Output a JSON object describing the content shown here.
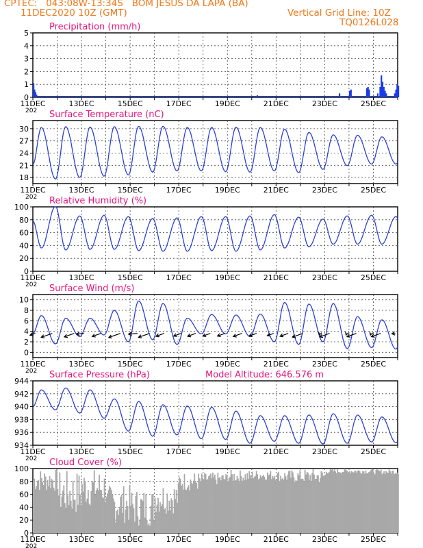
{
  "header": {
    "line1_left": "CPTEC:   043:08W-13:34S   BOM JESUS DA LAPA (BA)",
    "line1_right": "",
    "line2_left": "11DEC2020 10Z (GMT)",
    "line2_right": "Vertical Grid Line: 10Z",
    "line3_right": "TQ0126L028",
    "model_altitude": "Model Altitude: 646.576 m",
    "year_label": "202"
  },
  "colors": {
    "title": "#e8147c",
    "header": "#f07818",
    "line": "#2a3fd8",
    "precip": "#1a3ce8",
    "cloud": "#a8a8a8",
    "grid": "#444444",
    "arrow": "#000000"
  },
  "date_labels": [
    "11DEC",
    "13DEC",
    "15DEC",
    "17DEC",
    "19DEC",
    "21DEC",
    "23DEC",
    "25DEC"
  ],
  "chart_data": [
    {
      "id": "precip",
      "type": "bar",
      "title": "Precipitation (mm/h)",
      "ylim": [
        0,
        5
      ],
      "yticks": [
        0,
        1,
        2,
        3,
        4,
        5
      ],
      "bars": [
        {
          "day": 0.0,
          "v": 1.1
        },
        {
          "day": 0.04,
          "v": 0.6
        },
        {
          "day": 0.08,
          "v": 0.4
        },
        {
          "day": 0.12,
          "v": 0.2
        },
        {
          "day": 9.2,
          "v": 0.15
        },
        {
          "day": 12.58,
          "v": 0.3
        },
        {
          "day": 13.0,
          "v": 0.5
        },
        {
          "day": 13.05,
          "v": 0.6
        },
        {
          "day": 13.7,
          "v": 0.7
        },
        {
          "day": 13.75,
          "v": 0.8
        },
        {
          "day": 13.8,
          "v": 0.6
        },
        {
          "day": 14.15,
          "v": 0.3
        },
        {
          "day": 14.25,
          "v": 0.8
        },
        {
          "day": 14.3,
          "v": 1.7
        },
        {
          "day": 14.35,
          "v": 1.2
        },
        {
          "day": 14.4,
          "v": 0.8
        },
        {
          "day": 14.45,
          "v": 0.5
        },
        {
          "day": 14.5,
          "v": 0.3
        },
        {
          "day": 14.85,
          "v": 0.3
        },
        {
          "day": 14.9,
          "v": 0.6
        },
        {
          "day": 14.95,
          "v": 1.0
        },
        {
          "day": 15.0,
          "v": 0.9
        }
      ]
    },
    {
      "id": "temp",
      "type": "line",
      "title": "Surface Temperature (nC)",
      "ylim": [
        16.5,
        32
      ],
      "yticks": [
        18,
        21,
        24,
        27,
        30
      ],
      "t0": 21.2,
      "daily": [
        [
          17.6,
          30.3
        ],
        [
          18.0,
          30.5
        ],
        [
          18.3,
          30.4
        ],
        [
          18.6,
          30.5
        ],
        [
          19.3,
          30.6
        ],
        [
          19.6,
          30.6
        ],
        [
          19.6,
          30.3
        ],
        [
          19.4,
          30.3
        ],
        [
          19.3,
          30.4
        ],
        [
          19.6,
          30.3
        ],
        [
          19.2,
          29.9
        ],
        [
          20.0,
          29.1
        ],
        [
          20.9,
          28.5
        ],
        [
          21.3,
          28.4
        ],
        [
          21.3,
          28.0
        ],
        [
          22.0,
          28.3
        ]
      ],
      "t_end": 23.8
    },
    {
      "id": "rh",
      "type": "line",
      "title": "Relative Humidity (%)",
      "ylim": [
        0,
        100
      ],
      "yticks": [
        0,
        20,
        40,
        60,
        80,
        100
      ],
      "t0": 78,
      "daily": [
        [
          101,
          36
        ],
        [
          86,
          33
        ],
        [
          87,
          34
        ],
        [
          85,
          34
        ],
        [
          82,
          32
        ],
        [
          83,
          31
        ],
        [
          85,
          31
        ],
        [
          85,
          32
        ],
        [
          86,
          31
        ],
        [
          88,
          33
        ],
        [
          84,
          36
        ],
        [
          81,
          38
        ],
        [
          86,
          42
        ],
        [
          87,
          42
        ],
        [
          85,
          42
        ],
        [
          95,
          44
        ]
      ],
      "t_end": 80
    },
    {
      "id": "wind",
      "type": "line",
      "title": "Surface Wind (m/s)",
      "ylim": [
        -1,
        11
      ],
      "yticks": [
        0,
        2,
        4,
        6,
        8,
        10
      ],
      "t0": 3.6,
      "daily": [
        [
          1.6,
          7.0
        ],
        [
          3.0,
          6.5
        ],
        [
          3.3,
          6.5
        ],
        [
          2.0,
          8.0
        ],
        [
          2.4,
          9.8
        ],
        [
          1.5,
          9.3
        ],
        [
          3.5,
          6.5
        ],
        [
          3.5,
          7.2
        ],
        [
          3.0,
          7.1
        ],
        [
          2.0,
          7.3
        ],
        [
          1.5,
          9.5
        ],
        [
          2.0,
          9.2
        ],
        [
          0.7,
          9.3
        ],
        [
          0.9,
          6.8
        ],
        [
          0.6,
          6.2
        ],
        [
          1.3,
          8.3
        ]
      ],
      "t_end": 1.6,
      "arrows": [
        {
          "day": 0.1,
          "dir": "sw",
          "len": 9
        },
        {
          "day": 0.8,
          "dir": "sw",
          "len": 19
        },
        {
          "day": 1.7,
          "dir": "sw",
          "len": 17
        },
        {
          "day": 2.1,
          "dir": "w",
          "len": 11
        },
        {
          "day": 2.8,
          "dir": "sw",
          "len": 15
        },
        {
          "day": 3.6,
          "dir": "sw",
          "len": 20
        },
        {
          "day": 4.3,
          "dir": "w",
          "len": 13
        },
        {
          "day": 4.8,
          "dir": "sw",
          "len": 19
        },
        {
          "day": 5.4,
          "dir": "sw",
          "len": 14
        },
        {
          "day": 6.1,
          "dir": "sw",
          "len": 13
        },
        {
          "day": 6.7,
          "dir": "sw",
          "len": 14
        },
        {
          "day": 7.3,
          "dir": "sw",
          "len": 13
        },
        {
          "day": 7.9,
          "dir": "sw",
          "len": 13
        },
        {
          "day": 8.6,
          "dir": "sw",
          "len": 15
        },
        {
          "day": 9.2,
          "dir": "sw",
          "len": 13
        },
        {
          "day": 9.9,
          "dir": "sw",
          "len": 11
        },
        {
          "day": 10.5,
          "dir": "sw",
          "len": 14
        },
        {
          "day": 11.1,
          "dir": "sw",
          "len": 18
        },
        {
          "day": 11.8,
          "dir": "s",
          "len": 4
        },
        {
          "day": 12.2,
          "dir": "sw",
          "len": 17
        },
        {
          "day": 12.9,
          "dir": "s",
          "len": 4
        },
        {
          "day": 13.3,
          "dir": "sw",
          "len": 16
        },
        {
          "day": 13.9,
          "dir": "s",
          "len": 4
        },
        {
          "day": 14.3,
          "dir": "sw",
          "len": 16
        },
        {
          "day": 14.9,
          "dir": "w",
          "len": 5
        }
      ]
    },
    {
      "id": "pres",
      "type": "line",
      "title": "Surface Pressure (hPa)",
      "ylim": [
        934,
        944
      ],
      "yticks": [
        934,
        936,
        938,
        940,
        942,
        944
      ],
      "t0": 940.0,
      "daily": [
        [
          939.5,
          942.6
        ],
        [
          939.0,
          942.9
        ],
        [
          938.2,
          942.6
        ],
        [
          936.2,
          941.2
        ],
        [
          935.4,
          940.8
        ],
        [
          935.6,
          940.3
        ],
        [
          935.0,
          940.1
        ],
        [
          934.9,
          939.9
        ],
        [
          934.3,
          939.3
        ],
        [
          934.6,
          938.6
        ],
        [
          934.3,
          938.6
        ],
        [
          934.2,
          938.7
        ],
        [
          934.3,
          938.9
        ],
        [
          934.5,
          938.7
        ],
        [
          934.4,
          938.4
        ],
        [
          934.4,
          937.8
        ]
      ],
      "t_end": 937.3
    },
    {
      "id": "cloud",
      "type": "bar",
      "title": "Cloud Cover (%)",
      "ylim": [
        0,
        100
      ],
      "yticks": [
        0,
        20,
        40,
        60,
        80,
        100
      ],
      "daily_mean": [
        82,
        62,
        70,
        45,
        40,
        55,
        80,
        84,
        88,
        90,
        88,
        88,
        96,
        96,
        95,
        96
      ],
      "daily_var": [
        18,
        35,
        30,
        30,
        30,
        25,
        15,
        10,
        10,
        8,
        10,
        12,
        4,
        4,
        4,
        4
      ]
    }
  ]
}
